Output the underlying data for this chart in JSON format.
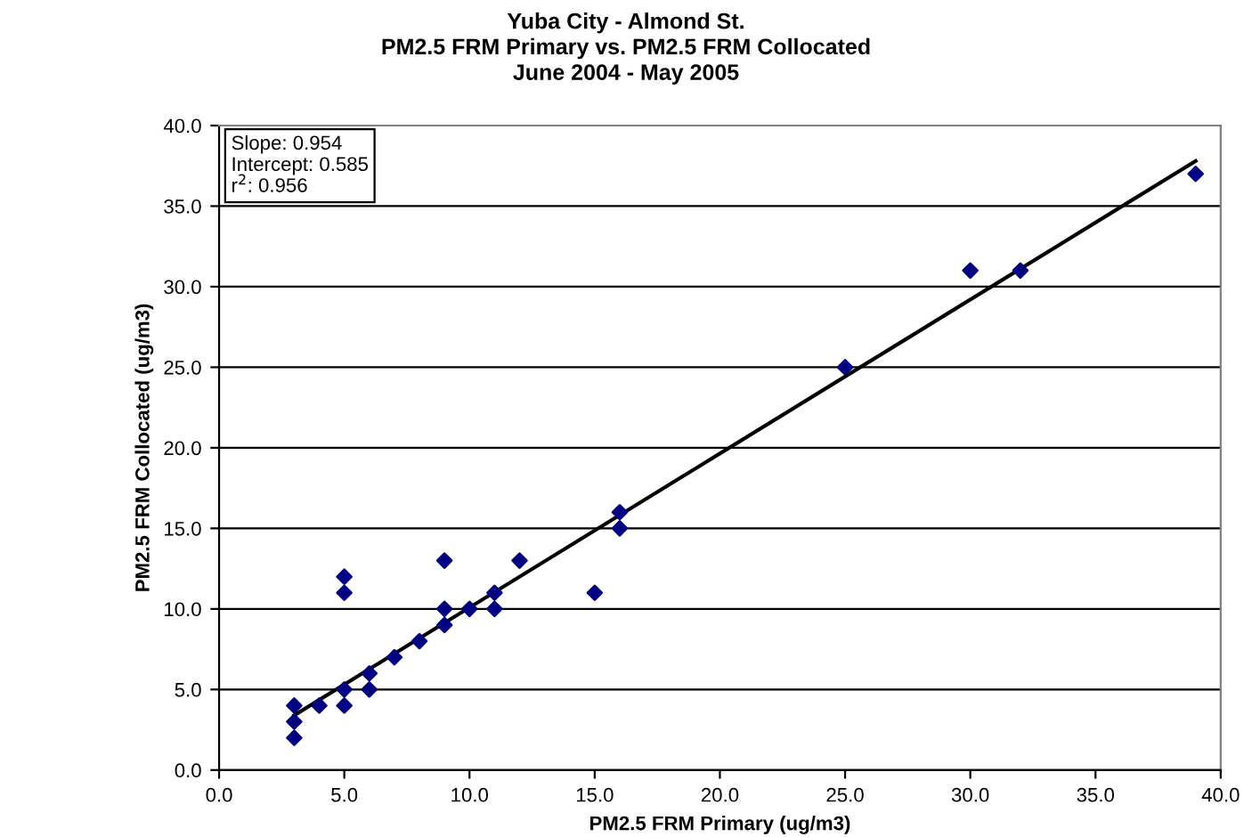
{
  "chart_data": {
    "type": "scatter",
    "title": "Yuba City - Almond St.\nPM2.5 FRM Primary vs. PM2.5 FRM Collocated\nJune 2004 - May 2005",
    "xlabel": "PM2.5 FRM Primary (ug/m3)",
    "ylabel": "PM2.5 FRM Collocated (ug/m3)",
    "annotations": [
      "Slope: 0.954\nIntercept: 0.585\nr$^{2}$: 0.956"
    ],
    "series": [
      {
        "type": "scatter",
        "color": "#000080",
        "marker": "diamond",
        "x": [
          3,
          3,
          3,
          4,
          5,
          5,
          5,
          5,
          6,
          6,
          7,
          8,
          9,
          9,
          9,
          10,
          11,
          11,
          12,
          15,
          16,
          16,
          25,
          30,
          32,
          39
        ],
        "values": [
          4,
          3,
          2,
          4,
          12,
          11,
          5,
          4,
          6,
          5,
          7,
          8,
          13,
          10,
          9,
          10,
          11,
          10,
          13,
          11,
          16,
          15,
          25,
          31,
          31,
          37
        ]
      },
      {
        "type": "line",
        "color": "#000000",
        "marker": "none",
        "x": [
          3,
          39
        ],
        "values": [
          3.4,
          37.8
        ]
      }
    ],
    "xlim": [
      0,
      40
    ],
    "xticks": [
      {
        "value": 0,
        "label": "0.0"
      },
      {
        "value": 5,
        "label": "5.0"
      },
      {
        "value": 10,
        "label": "10.0"
      },
      {
        "value": 15,
        "label": "15.0"
      },
      {
        "value": 20,
        "label": "20.0"
      },
      {
        "value": 25,
        "label": "25.0"
      },
      {
        "value": 30,
        "label": "30.0"
      },
      {
        "value": 35,
        "label": "35.0"
      },
      {
        "value": 40,
        "label": "40.0"
      }
    ],
    "ylim": [
      0,
      40
    ],
    "yticks": [
      {
        "value": 0,
        "label": "0.0"
      },
      {
        "value": 5,
        "label": "5.0"
      },
      {
        "value": 10,
        "label": "10.0"
      },
      {
        "value": 15,
        "label": "15.0"
      },
      {
        "value": 20,
        "label": "20.0"
      },
      {
        "value": 25,
        "label": "25.0"
      },
      {
        "value": 30,
        "label": "30.0"
      },
      {
        "value": 35,
        "label": "35.0"
      },
      {
        "value": 40,
        "label": "40.0"
      }
    ],
    "grid": "y",
    "legend": false
  }
}
